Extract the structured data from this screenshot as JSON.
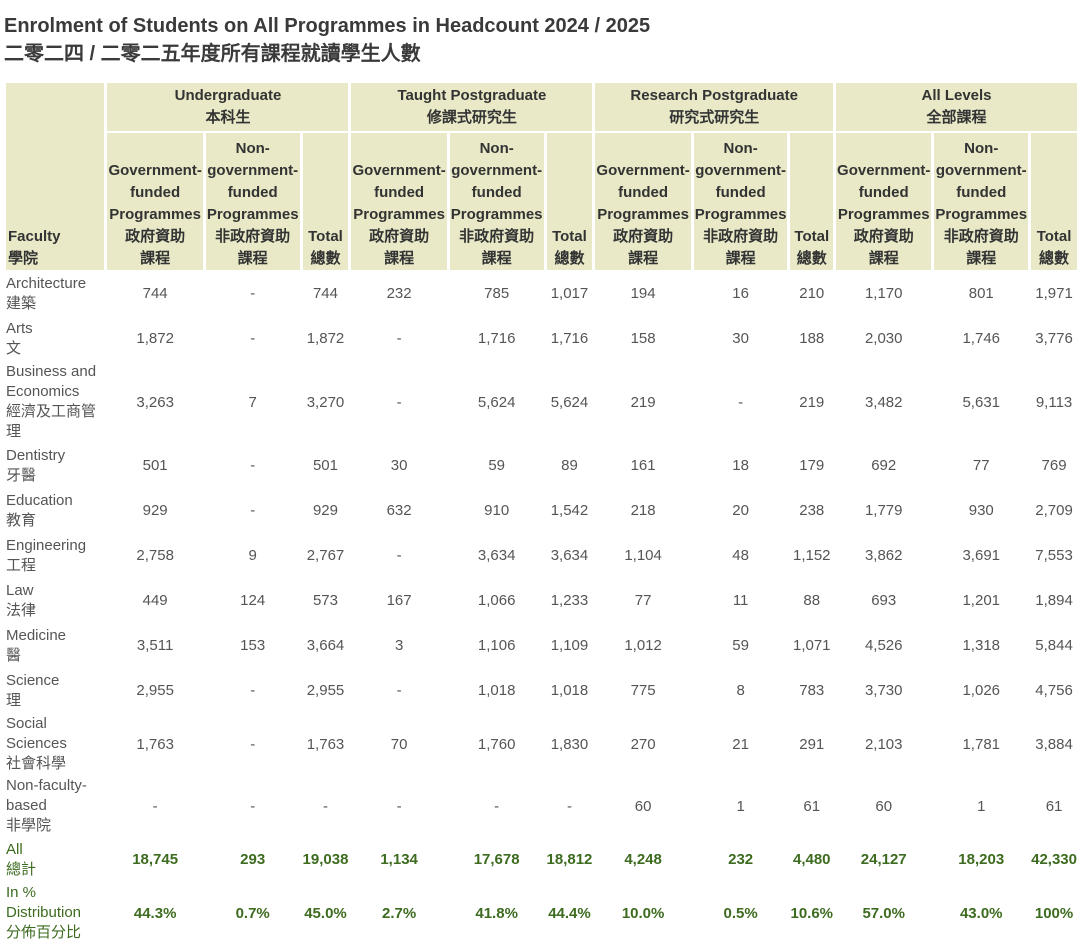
{
  "title": {
    "en": "Enrolment of Students on All Programmes in Headcount 2024 / 2025",
    "zh": "二零二四 / 二零二五年度所有課程就讀學生人數"
  },
  "header": {
    "faculty": [
      "Faculty",
      "學院"
    ],
    "groups": [
      [
        "Undergraduate",
        "本科生"
      ],
      [
        "Taught Postgraduate",
        "修課式研究生"
      ],
      [
        "Research Postgraduate",
        "研究式研究生"
      ],
      [
        "All Levels",
        "全部課程"
      ]
    ],
    "sub": {
      "gov": [
        "Government-",
        "funded",
        "Programmes",
        "政府資助",
        "課程"
      ],
      "nongov": [
        "Non-",
        "government-",
        "funded",
        "Programmes",
        "非政府資助",
        "課程"
      ],
      "total": [
        "Total",
        "總數"
      ]
    }
  },
  "rows": [
    {
      "faculty": [
        "Architecture",
        "建築"
      ],
      "values": [
        "744",
        "-",
        "744",
        "232",
        "785",
        "1,017",
        "194",
        "16",
        "210",
        "1,170",
        "801",
        "1,971"
      ]
    },
    {
      "faculty": [
        "Arts",
        "文"
      ],
      "values": [
        "1,872",
        "-",
        "1,872",
        "-",
        "1,716",
        "1,716",
        "158",
        "30",
        "188",
        "2,030",
        "1,746",
        "3,776"
      ]
    },
    {
      "faculty": [
        "Business and",
        "Economics",
        "經濟及工商管理"
      ],
      "values": [
        "3,263",
        "7",
        "3,270",
        "-",
        "5,624",
        "5,624",
        "219",
        "-",
        "219",
        "3,482",
        "5,631",
        "9,113"
      ]
    },
    {
      "faculty": [
        "Dentistry",
        "牙醫"
      ],
      "values": [
        "501",
        "-",
        "501",
        "30",
        "59",
        "89",
        "161",
        "18",
        "179",
        "692",
        "77",
        "769"
      ]
    },
    {
      "faculty": [
        "Education",
        "教育"
      ],
      "values": [
        "929",
        "-",
        "929",
        "632",
        "910",
        "1,542",
        "218",
        "20",
        "238",
        "1,779",
        "930",
        "2,709"
      ]
    },
    {
      "faculty": [
        "Engineering",
        "工程"
      ],
      "values": [
        "2,758",
        "9",
        "2,767",
        "-",
        "3,634",
        "3,634",
        "1,104",
        "48",
        "1,152",
        "3,862",
        "3,691",
        "7,553"
      ]
    },
    {
      "faculty": [
        "Law",
        "法律"
      ],
      "values": [
        "449",
        "124",
        "573",
        "167",
        "1,066",
        "1,233",
        "77",
        "11",
        "88",
        "693",
        "1,201",
        "1,894"
      ]
    },
    {
      "faculty": [
        "Medicine",
        "醫"
      ],
      "values": [
        "3,511",
        "153",
        "3,664",
        "3",
        "1,106",
        "1,109",
        "1,012",
        "59",
        "1,071",
        "4,526",
        "1,318",
        "5,844"
      ]
    },
    {
      "faculty": [
        "Science",
        "理"
      ],
      "values": [
        "2,955",
        "-",
        "2,955",
        "-",
        "1,018",
        "1,018",
        "775",
        "8",
        "783",
        "3,730",
        "1,026",
        "4,756"
      ]
    },
    {
      "faculty": [
        "Social Sciences",
        "社會科學"
      ],
      "values": [
        "1,763",
        "-",
        "1,763",
        "70",
        "1,760",
        "1,830",
        "270",
        "21",
        "291",
        "2,103",
        "1,781",
        "3,884"
      ]
    },
    {
      "faculty": [
        "Non-faculty-based",
        "非學院"
      ],
      "values": [
        "-",
        "-",
        "-",
        "-",
        "-",
        "-",
        "60",
        "1",
        "61",
        "60",
        "1",
        "61"
      ]
    }
  ],
  "total": {
    "faculty": [
      "All",
      "總計"
    ],
    "values": [
      "18,745",
      "293",
      "19,038",
      "1,134",
      "17,678",
      "18,812",
      "4,248",
      "232",
      "4,480",
      "24,127",
      "18,203",
      "42,330"
    ]
  },
  "pct": {
    "faculty": [
      "In % Distribution",
      "分佈百分比"
    ],
    "values": [
      "44.3%",
      "0.7%",
      "45.0%",
      "2.7%",
      "41.8%",
      "44.4%",
      "10.0%",
      "0.5%",
      "10.6%",
      "57.0%",
      "43.0%",
      "100%"
    ]
  }
}
